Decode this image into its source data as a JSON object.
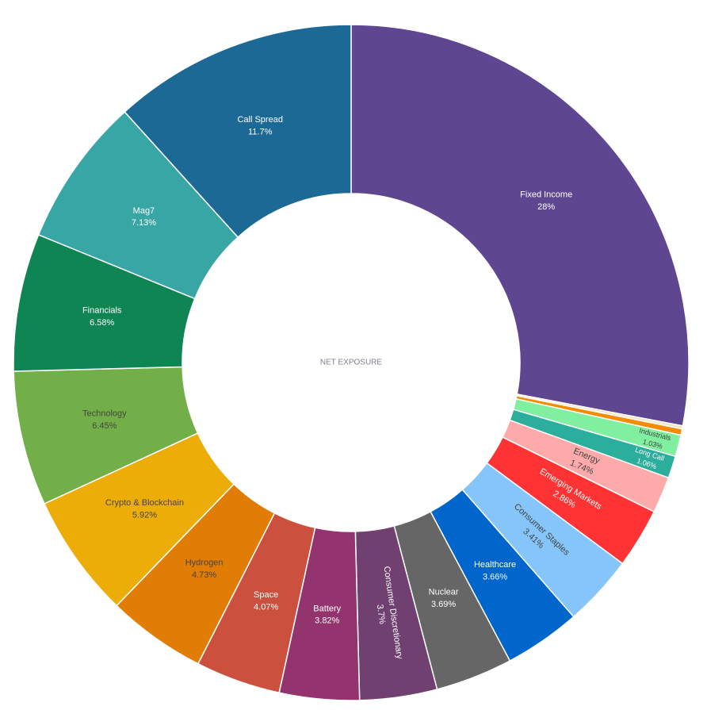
{
  "chart_data": {
    "type": "donut",
    "center_label": "NET EXPOSURE",
    "categories": [
      "Fixed Income",
      null,
      null,
      "Industrials",
      "Long Call",
      "Energy",
      "Emerging Markets",
      "Consumer Staples",
      "Healthcare",
      "Nuclear",
      "Consumer Discretionary",
      "Battery",
      "Space",
      "Hydrogen",
      "Crypto & Blockchain",
      "Technology",
      "Financials",
      "Mag7",
      "Call Spread"
    ],
    "values": [
      28,
      0.15,
      0.3,
      1.03,
      1.06,
      1.74,
      2.86,
      3.41,
      3.66,
      3.69,
      3.7,
      3.82,
      4.07,
      4.73,
      5.92,
      6.45,
      6.58,
      7.13,
      11.7
    ],
    "value_labels": [
      "28%",
      null,
      null,
      "1.03%",
      "1.06%",
      "1.74%",
      "2.86%",
      "3.41%",
      "3.66%",
      "3.69%",
      "3.7%",
      "3.82%",
      "4.07%",
      "4.73%",
      "5.92%",
      "6.45%",
      "6.58%",
      "7.13%",
      "11.7%"
    ],
    "colors": [
      "#5f4690",
      "#f3e6c8",
      "#f58b00",
      "#80ef9f",
      "#2bae9b",
      "#ffaaaa",
      "#ff3333",
      "#85c5fa",
      "#0066cc",
      "#666666",
      "#6f4070",
      "#94346e",
      "#cc503e",
      "#e17c05",
      "#edad08",
      "#73af48",
      "#0f8554",
      "#38a6a5",
      "#1d6996"
    ]
  }
}
